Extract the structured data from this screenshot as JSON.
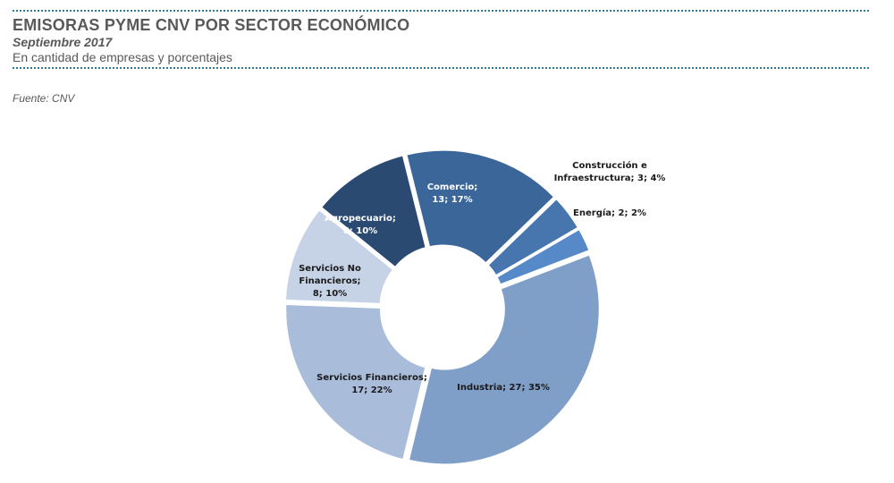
{
  "header": {
    "title": "EMISORAS PYME CNV POR SECTOR ECONÓMICO",
    "subtitle": "Septiembre 2017",
    "units": "En cantidad de empresas y porcentajes"
  },
  "source": "Fuente: CNV",
  "chart_data": {
    "type": "pie",
    "donut": true,
    "title": "",
    "legend": "none",
    "slices": [
      {
        "name": "Comercio",
        "value": 13,
        "percent": 17,
        "color": "#3b669a",
        "label_lines": [
          "Comercio;",
          "13; 17%"
        ],
        "label_color": "#ffffff"
      },
      {
        "name": "Construcción e Infraestructura",
        "value": 3,
        "percent": 4,
        "color": "#4775ae",
        "label_lines": [
          "Construcción e",
          "Infraestructura; 3; 4%"
        ],
        "label_color": "#1a1a1a"
      },
      {
        "name": "Energía",
        "value": 2,
        "percent": 2,
        "color": "#5589c7",
        "label_lines": [
          "Energía; 2; 2%"
        ],
        "label_color": "#1a1a1a"
      },
      {
        "name": "Industria",
        "value": 27,
        "percent": 35,
        "color": "#7f9fc8",
        "label_lines": [
          "Industria; 27; 35%"
        ],
        "label_color": "#1a1a1a"
      },
      {
        "name": "Servicios Financieros",
        "value": 17,
        "percent": 22,
        "color": "#a9bcd9",
        "label_lines": [
          "Servicios Financieros;",
          "17; 22%"
        ],
        "label_color": "#1a1a1a"
      },
      {
        "name": "Servicios No Financieros",
        "value": 8,
        "percent": 10,
        "color": "#c6d2e6",
        "label_lines": [
          "Servicios No",
          "Financieros;",
          "8; 10%"
        ],
        "label_color": "#1a1a1a"
      },
      {
        "name": "Agropecuario",
        "value": 8,
        "percent": 10,
        "color": "#2b4a72",
        "label_lines": [
          "Agropecuario;",
          "8; 10%"
        ],
        "label_color": "#ffffff"
      }
    ]
  }
}
